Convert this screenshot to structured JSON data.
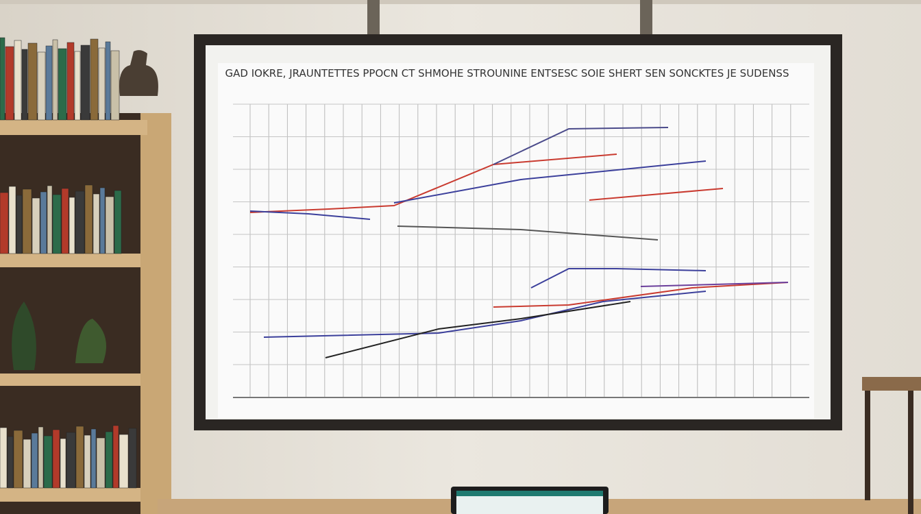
{
  "board": {
    "title": "GAD IOKRE, JRAUNTETTES PPOCN CT SHMOHE STROUNINE ENTSESC SOIE SHERT SEN SONCKTES JE SUDENSS"
  }
}
